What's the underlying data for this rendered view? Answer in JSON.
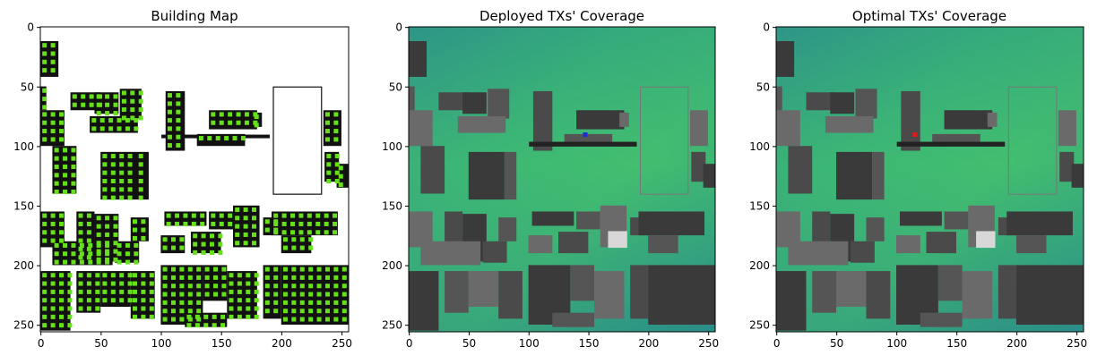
{
  "chart_data": [
    {
      "type": "heatmap",
      "title": "Building Map",
      "xlim": [
        0,
        255
      ],
      "ylim": [
        255,
        0
      ],
      "xticks": [
        0,
        50,
        100,
        150,
        200,
        250
      ],
      "yticks": [
        0,
        50,
        100,
        150,
        200,
        250
      ],
      "colormap": "binary buildings (black) with green candidate points",
      "colors": {
        "building": "#111111",
        "candidate": "#66e01a",
        "background": "#ffffff"
      }
    },
    {
      "type": "heatmap",
      "title": "Deployed TXs' Coverage",
      "xlim": [
        0,
        255
      ],
      "ylim": [
        255,
        0
      ],
      "xticks": [
        0,
        50,
        100,
        150,
        200,
        250
      ],
      "yticks": [
        0,
        50,
        100,
        150,
        200,
        250
      ],
      "colormap": "viridis",
      "transmitter": {
        "x": 147,
        "y": 90,
        "color": "#1f2bd6"
      }
    },
    {
      "type": "heatmap",
      "title": "Optimal TXs' Coverage",
      "xlim": [
        0,
        255
      ],
      "ylim": [
        255,
        0
      ],
      "xticks": [
        0,
        50,
        100,
        150,
        200,
        250
      ],
      "yticks": [
        0,
        50,
        100,
        150,
        200,
        250
      ],
      "colormap": "viridis",
      "transmitter": {
        "x": 115,
        "y": 90,
        "color": "#e01b1b"
      }
    }
  ]
}
